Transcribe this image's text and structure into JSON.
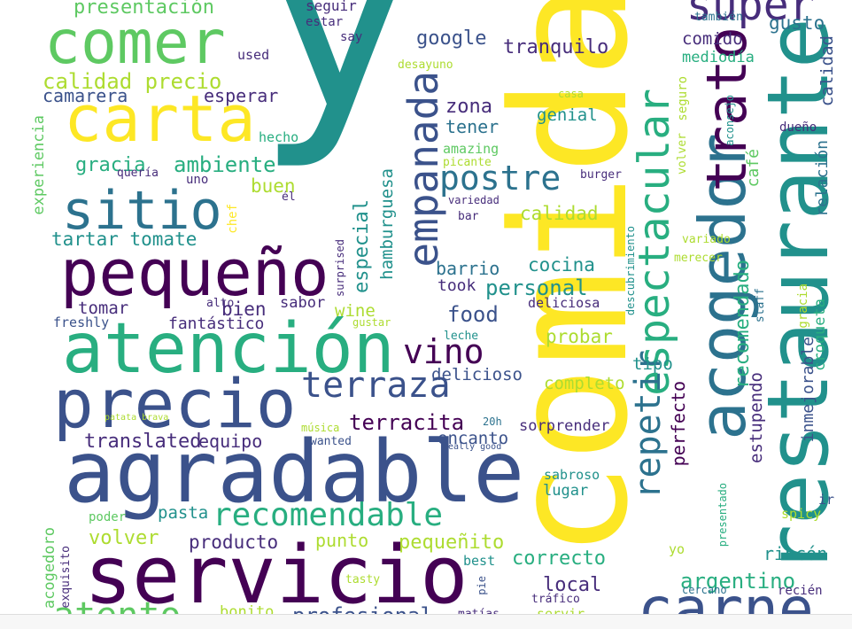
{
  "palette": {
    "p1": "#440154",
    "p2": "#472d7b",
    "p3": "#3b528b",
    "p4": "#2c728e",
    "p5": "#21918c",
    "p6": "#28ae80",
    "p7": "#5ec962",
    "p8": "#addc30",
    "p9": "#fde725"
  },
  "words": [
    {
      "text": "y",
      "c": "p5"
    },
    {
      "text": "comida",
      "c": "p9"
    },
    {
      "text": "restaurante",
      "c": "p5"
    },
    {
      "text": "agradable",
      "c": "p3"
    },
    {
      "text": "servicio",
      "c": "p1"
    },
    {
      "text": "atención",
      "c": "p6"
    },
    {
      "text": "precio",
      "c": "p3"
    },
    {
      "text": "pequeño",
      "c": "p1"
    },
    {
      "text": "carta",
      "c": "p9"
    },
    {
      "text": "comer",
      "c": "p7"
    },
    {
      "text": "sitio",
      "c": "p4"
    },
    {
      "text": "acogedor",
      "c": "p4"
    },
    {
      "text": "trato",
      "c": "p1"
    },
    {
      "text": "espectacular",
      "c": "p6"
    },
    {
      "text": "súper",
      "c": "p2"
    },
    {
      "text": "carne",
      "c": "p3"
    },
    {
      "text": "empanada",
      "c": "p3"
    },
    {
      "text": "terraza",
      "c": "p3"
    },
    {
      "text": "recomendable",
      "c": "p6"
    },
    {
      "text": "vino",
      "c": "p1"
    },
    {
      "text": "repetir",
      "c": "p4"
    },
    {
      "text": "postre",
      "c": "p4"
    },
    {
      "text": "presentación",
      "c": "p7"
    },
    {
      "text": "calidad precio",
      "c": "p8"
    },
    {
      "text": "camarera",
      "c": "p3"
    },
    {
      "text": "esperar",
      "c": "p2"
    },
    {
      "text": "gracia",
      "c": "p6"
    },
    {
      "text": "ambiente",
      "c": "p6"
    },
    {
      "text": "tartar tomate",
      "c": "p5"
    },
    {
      "text": "translated",
      "c": "p2"
    },
    {
      "text": "equipo",
      "c": "p2"
    },
    {
      "text": "volver",
      "c": "p8"
    },
    {
      "text": "producto",
      "c": "p2"
    },
    {
      "text": "punto",
      "c": "p8"
    },
    {
      "text": "pequeñito",
      "c": "p8"
    },
    {
      "text": "correcto",
      "c": "p6"
    },
    {
      "text": "local",
      "c": "p2"
    },
    {
      "text": "argentino",
      "c": "p6"
    },
    {
      "text": "rincón",
      "c": "p5"
    },
    {
      "text": "profesional",
      "c": "p3"
    },
    {
      "text": "atento",
      "c": "p7"
    },
    {
      "text": "pasta",
      "c": "p5"
    },
    {
      "text": "bonito",
      "c": "p8"
    },
    {
      "text": "google",
      "c": "p3"
    },
    {
      "text": "tranquilo",
      "c": "p2"
    },
    {
      "text": "zona",
      "c": "p2"
    },
    {
      "text": "tener",
      "c": "p4"
    },
    {
      "text": "genial",
      "c": "p5"
    },
    {
      "text": "comido",
      "c": "p2"
    },
    {
      "text": "mediodía",
      "c": "p6"
    },
    {
      "text": "gusto",
      "c": "p4"
    },
    {
      "text": "seguir",
      "c": "p2"
    },
    {
      "text": "estar",
      "c": "p2"
    },
    {
      "text": "say",
      "c": "p2"
    },
    {
      "text": "used",
      "c": "p2"
    },
    {
      "text": "desayuno",
      "c": "p8"
    },
    {
      "text": "casa",
      "c": "p8"
    },
    {
      "text": "seguro",
      "c": "p8"
    },
    {
      "text": "aconsejo",
      "c": "p5"
    },
    {
      "text": "dueño",
      "c": "p2"
    },
    {
      "text": "también",
      "c": "p4"
    },
    {
      "text": "calidad",
      "c": "p3"
    },
    {
      "text": "relación",
      "c": "p4"
    },
    {
      "text": "café",
      "c": "p7"
    },
    {
      "text": "recomendado",
      "c": "p6"
    },
    {
      "text": "especial",
      "c": "p5"
    },
    {
      "text": "hamburguesa",
      "c": "p5"
    },
    {
      "text": "barrio",
      "c": "p4"
    },
    {
      "text": "cocina",
      "c": "p5"
    },
    {
      "text": "took",
      "c": "p2"
    },
    {
      "text": "personal",
      "c": "p5"
    },
    {
      "text": "food",
      "c": "p3"
    },
    {
      "text": "deliciosa",
      "c": "p2"
    },
    {
      "text": "probar",
      "c": "p8"
    },
    {
      "text": "tipo",
      "c": "p5"
    },
    {
      "text": "completo",
      "c": "p8"
    },
    {
      "text": "delicioso",
      "c": "p3"
    },
    {
      "text": "terracita",
      "c": "p1"
    },
    {
      "text": "encanto",
      "c": "p3"
    },
    {
      "text": "sorprender",
      "c": "p2"
    },
    {
      "text": "perfecto",
      "c": "p1"
    },
    {
      "text": "estupendo",
      "c": "p2"
    },
    {
      "text": "inmejorable",
      "c": "p3"
    },
    {
      "text": "croqueta",
      "c": "p6"
    },
    {
      "text": "experiencia",
      "c": "p7"
    },
    {
      "text": "hecho",
      "c": "p6"
    },
    {
      "text": "quería",
      "c": "p2"
    },
    {
      "text": "uno",
      "c": "p2"
    },
    {
      "text": "él",
      "c": "p2"
    },
    {
      "text": "chef",
      "c": "p9"
    },
    {
      "text": "buen",
      "c": "p8"
    },
    {
      "text": "calidad",
      "c": "p8"
    },
    {
      "text": "bar",
      "c": "p2"
    },
    {
      "text": "variedad",
      "c": "p2"
    },
    {
      "text": "amazing",
      "c": "p7"
    },
    {
      "text": "picante",
      "c": "p8"
    },
    {
      "text": "burger",
      "c": "p2"
    },
    {
      "text": "volver",
      "c": "p8"
    },
    {
      "text": "variado",
      "c": "p8"
    },
    {
      "text": "merecer",
      "c": "p8"
    },
    {
      "text": "descubrimiento",
      "c": "p5"
    },
    {
      "text": "staff",
      "c": "p4"
    },
    {
      "text": "surprised",
      "c": "p2"
    },
    {
      "text": "sabor",
      "c": "p2"
    },
    {
      "text": "wine",
      "c": "p8"
    },
    {
      "text": "gustar",
      "c": "p8"
    },
    {
      "text": "leche",
      "c": "p5"
    },
    {
      "text": "tomar",
      "c": "p2"
    },
    {
      "text": "bien",
      "c": "p2"
    },
    {
      "text": "alto",
      "c": "p2"
    },
    {
      "text": "freshly",
      "c": "p3"
    },
    {
      "text": "fantástico",
      "c": "p2"
    },
    {
      "text": "patata brava",
      "c": "p8"
    },
    {
      "text": "música",
      "c": "p8"
    },
    {
      "text": "wanted",
      "c": "p3"
    },
    {
      "text": "really good",
      "c": "p3"
    },
    {
      "text": "20h",
      "c": "p4"
    },
    {
      "text": "sabroso",
      "c": "p5"
    },
    {
      "text": "lugar",
      "c": "p5"
    },
    {
      "text": "presentado",
      "c": "p6"
    },
    {
      "text": "ir",
      "c": "p3"
    },
    {
      "text": "spicy",
      "c": "p8"
    },
    {
      "text": "yo",
      "c": "p8"
    },
    {
      "text": "poder",
      "c": "p7"
    },
    {
      "text": "acogedoro",
      "c": "p7"
    },
    {
      "text": "exquisito",
      "c": "p2"
    },
    {
      "text": "best",
      "c": "p5"
    },
    {
      "text": "tasty",
      "c": "p8"
    },
    {
      "text": "pie",
      "c": "p3"
    },
    {
      "text": "matías",
      "c": "p2"
    },
    {
      "text": "tráfico",
      "c": "p2"
    },
    {
      "text": "servir",
      "c": "p8"
    },
    {
      "text": "cercano",
      "c": "p4"
    },
    {
      "text": "recién",
      "c": "p2"
    },
    {
      "text": "gracia",
      "c": "p8"
    }
  ]
}
